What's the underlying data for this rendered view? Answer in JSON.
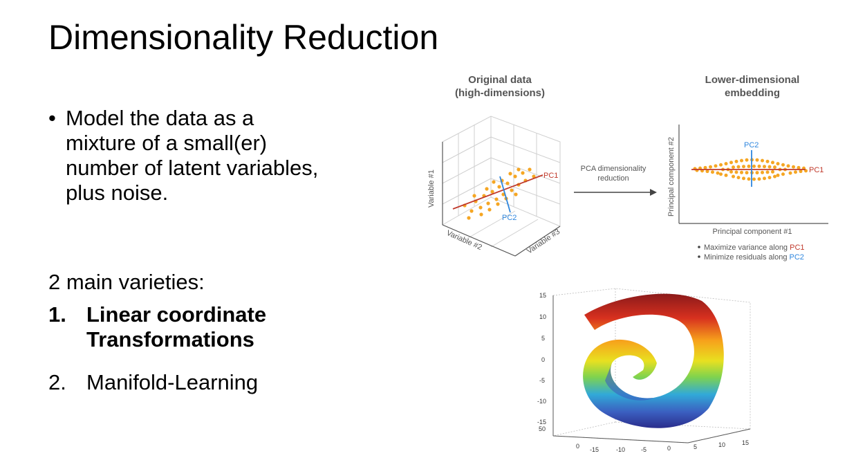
{
  "slide": {
    "title": "Dimensionality Reduction",
    "bullet": "Model the data as a mixture of a small(er) number of latent variables, plus noise.",
    "bullet_marker": "•",
    "varieties_heading": "2 main varieties:",
    "items": [
      {
        "num": "1.",
        "text": "Linear coordinate Transformations"
      },
      {
        "num": "2.",
        "text": "Manifold-Learning"
      }
    ]
  },
  "pca_diagram": {
    "left_title_line1": "Original data",
    "left_title_line2": "(high-dimensions)",
    "right_title_line1": "Lower-dimensional",
    "right_title_line2": "embedding",
    "arrow_label_line1": "PCA dimensionality",
    "arrow_label_line2": "reduction",
    "axis_var1": "Variable #1",
    "axis_var2": "Variable #2",
    "axis_var3": "Variable #3",
    "pc1": "PC1",
    "pc2": "PC2",
    "x_axis_label": "Principal component #1",
    "y_axis_label": "Principal component #2",
    "note1_prefix": "Maximize variance along ",
    "note2_prefix": "Minimize residuals along ",
    "colors": {
      "pc1": "#c0392b",
      "pc2": "#2e86de",
      "points": "#f5a623"
    }
  },
  "swiss_roll": {
    "z_ticks": [
      "15",
      "10",
      "5",
      "0",
      "-5",
      "-10",
      "-15"
    ],
    "y_tick": "50",
    "x_ticks_origin": "0",
    "x_ticks": [
      "-15",
      "-10",
      "-5",
      "0",
      "5",
      "10",
      "15"
    ]
  }
}
